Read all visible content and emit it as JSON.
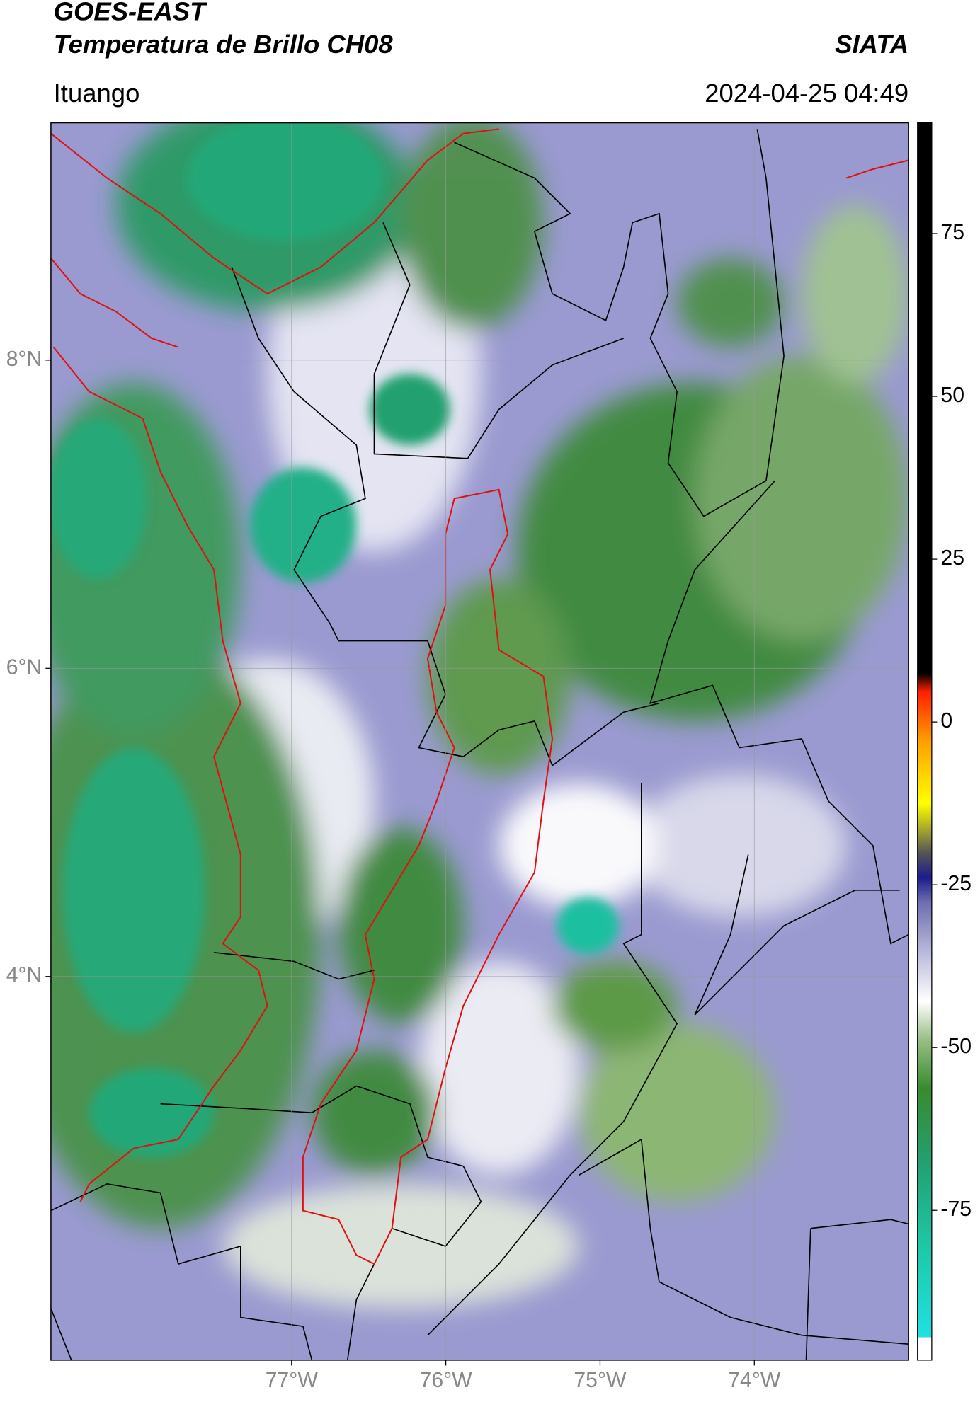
{
  "chart_data": {
    "type": "map",
    "title": "GOES-EAST",
    "subtitle": "Temperatura de Brillo CH08",
    "source": "SIATA",
    "location": "Ituango",
    "timestamp": "2024-04-25 04:49",
    "xlim": [
      -78.56,
      -73.0
    ],
    "ylim": [
      1.51,
      9.54
    ],
    "xticks": [
      {
        "value": -77,
        "label": "77°W"
      },
      {
        "value": -76,
        "label": "76°W"
      },
      {
        "value": -75,
        "label": "75°W"
      },
      {
        "value": -74,
        "label": "74°W"
      }
    ],
    "yticks": [
      {
        "value": 8,
        "label": "8°N"
      },
      {
        "value": 6,
        "label": "6°N"
      },
      {
        "value": 4,
        "label": "4°N"
      }
    ],
    "grid": true,
    "colorbar": {
      "lim": [
        -98,
        92
      ],
      "ticks": [
        75,
        50,
        25,
        0,
        -25,
        -50,
        -75
      ]
    }
  }
}
